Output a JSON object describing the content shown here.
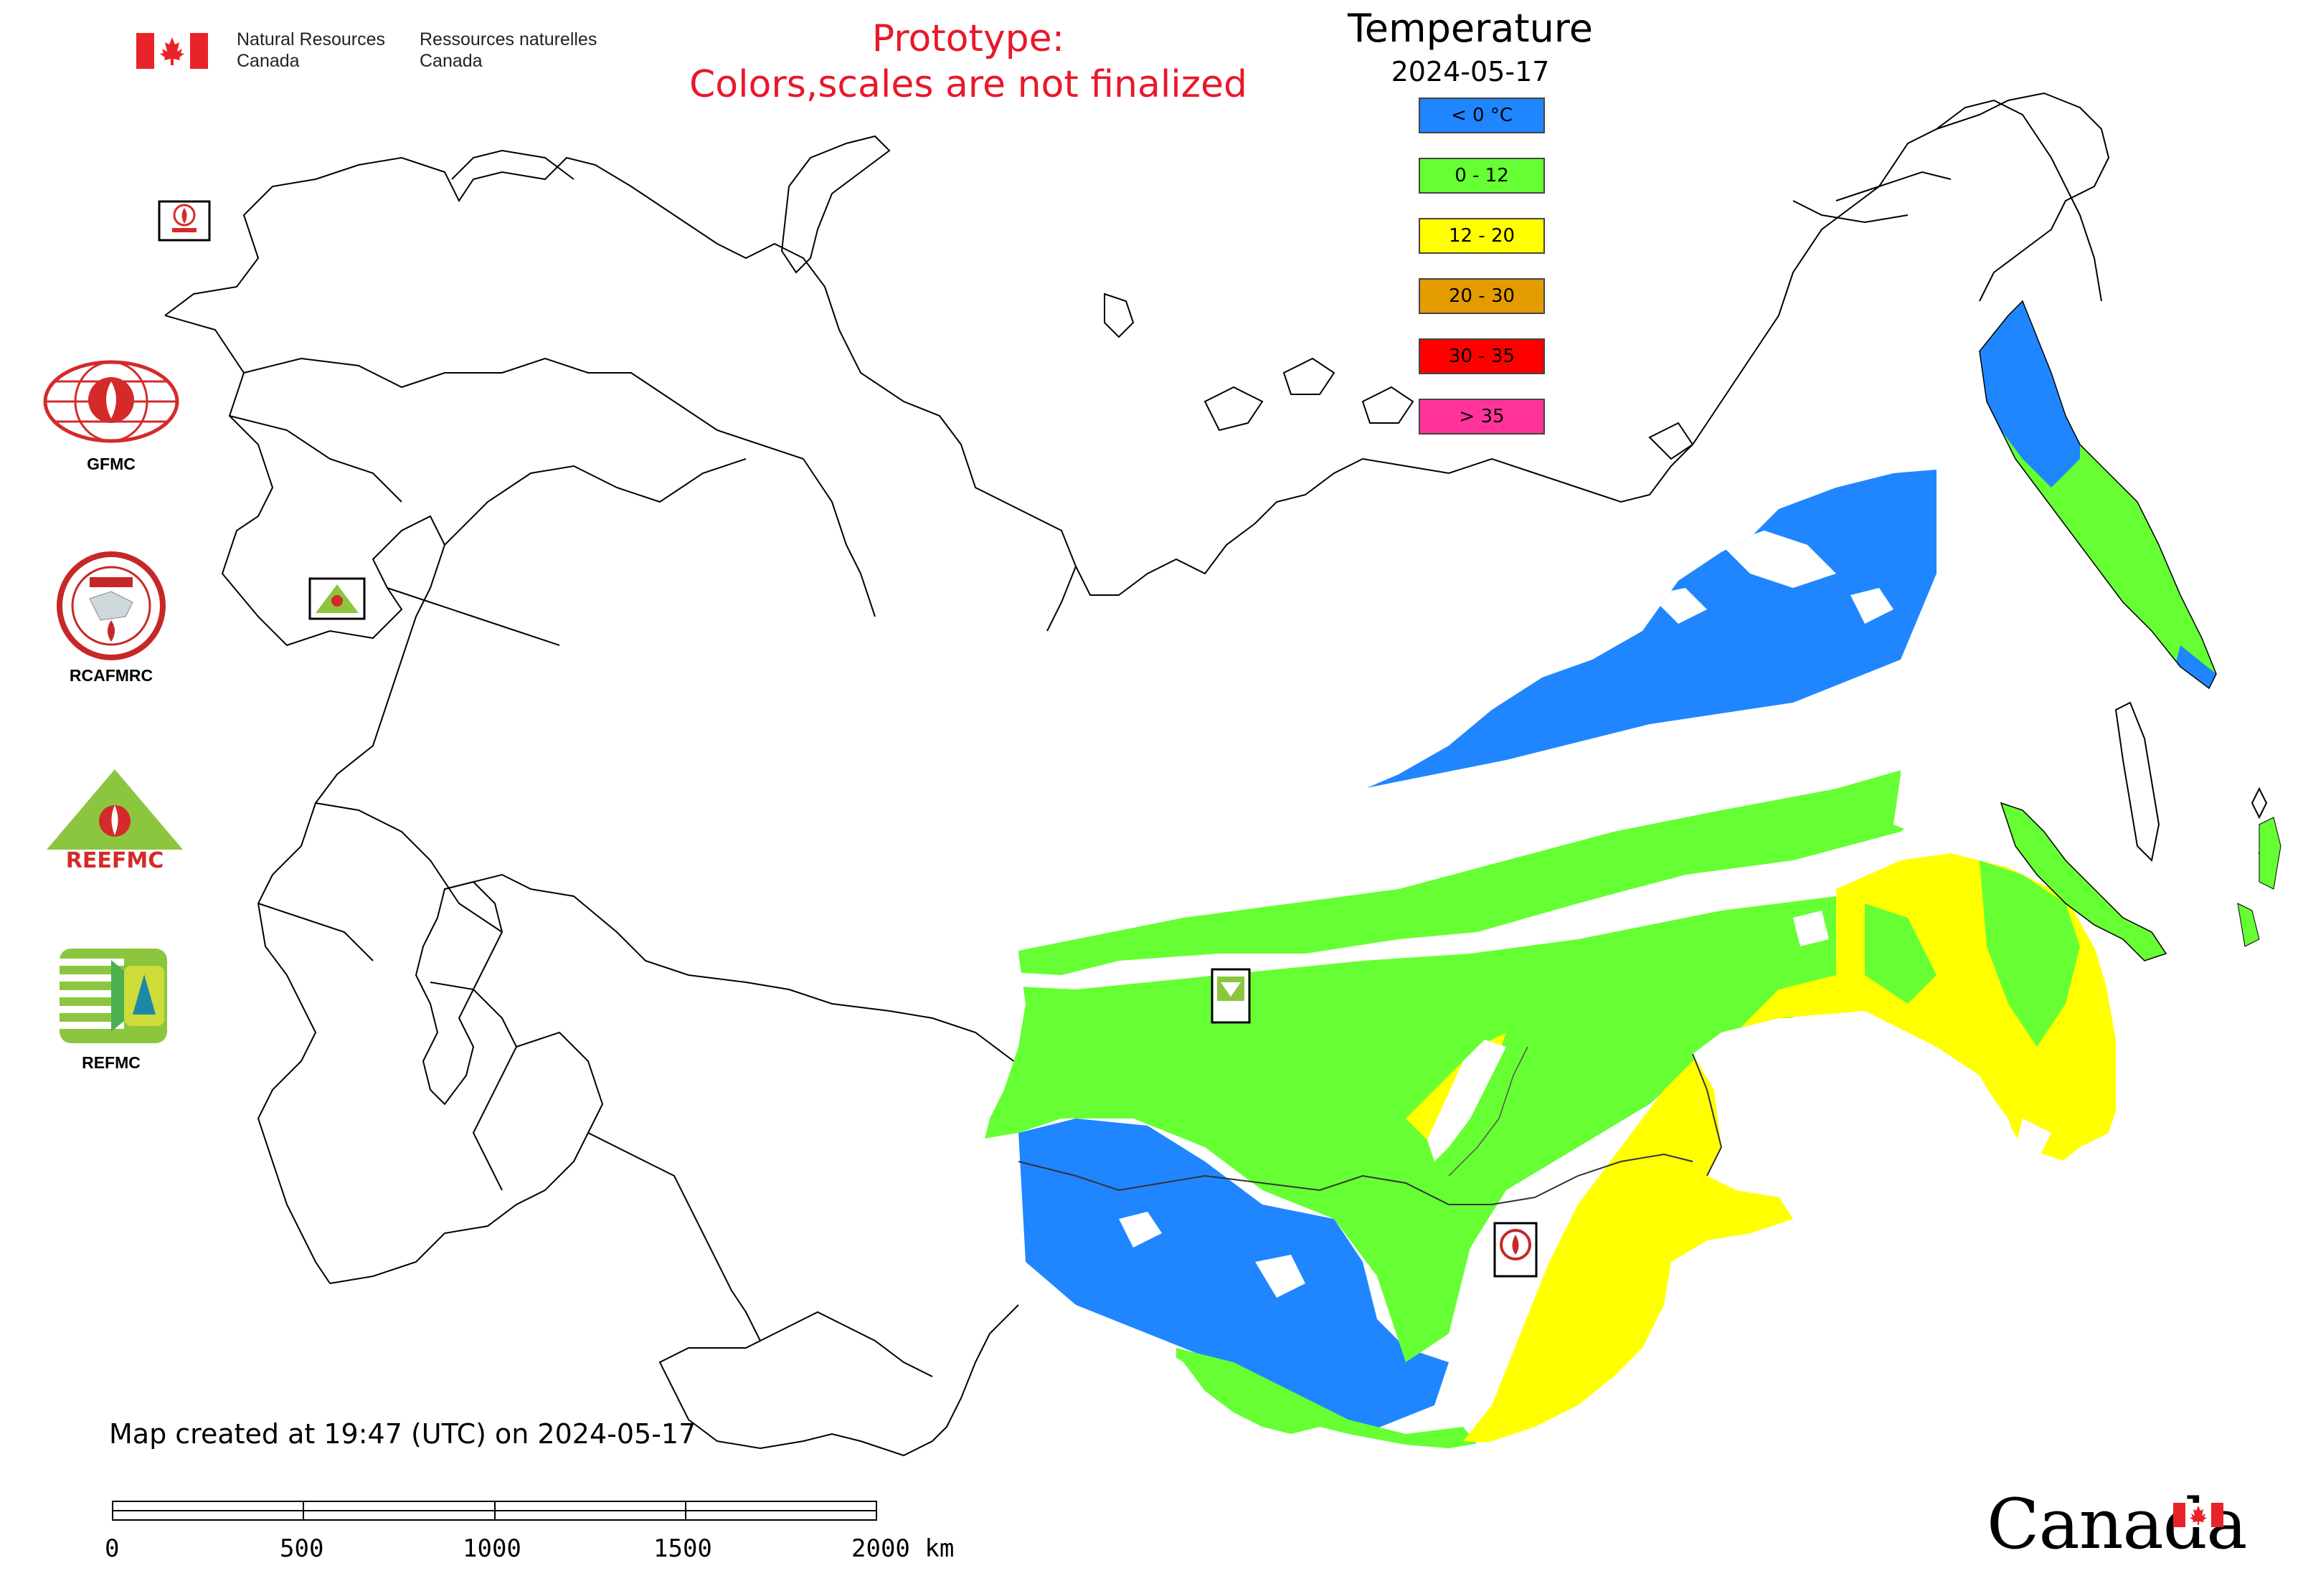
{
  "agency": {
    "name_en": "Natural Resources Canada",
    "name_fr": "Ressources naturelles Canada",
    "flag_icon": "canada-flag-icon"
  },
  "notice": {
    "line1": "Prototype:",
    "line2": "Colors,scales are not finalized",
    "color": "#e8182b"
  },
  "legend": {
    "title": "Temperature",
    "date": "2024-05-17",
    "classes": [
      {
        "label": "< 0 °C",
        "color": "#1f86ff"
      },
      {
        "label": "0 - 12",
        "color": "#66ff33"
      },
      {
        "label": "12 - 20",
        "color": "#ffff00"
      },
      {
        "label": "20 - 30",
        "color": "#e39c00"
      },
      {
        "label": "30 - 35",
        "color": "#ff0000"
      },
      {
        "label": "> 35",
        "color": "#ff3399"
      }
    ]
  },
  "organizations": [
    {
      "label": "GFMC",
      "icon": "gfmc-logo"
    },
    {
      "label": "RCAFMRC",
      "icon": "rcafmrc-logo"
    },
    {
      "label": "",
      "icon": "reefmc-logo"
    },
    {
      "label": "REFMC",
      "icon": "refmc-logo"
    }
  ],
  "footer": {
    "created": "Map created at 19:47 (UTC) on 2024-05-17",
    "wordmark": "Canada"
  },
  "scale_bar": {
    "ticks": [
      "0",
      "500",
      "1000",
      "1500",
      "2000 km"
    ]
  }
}
